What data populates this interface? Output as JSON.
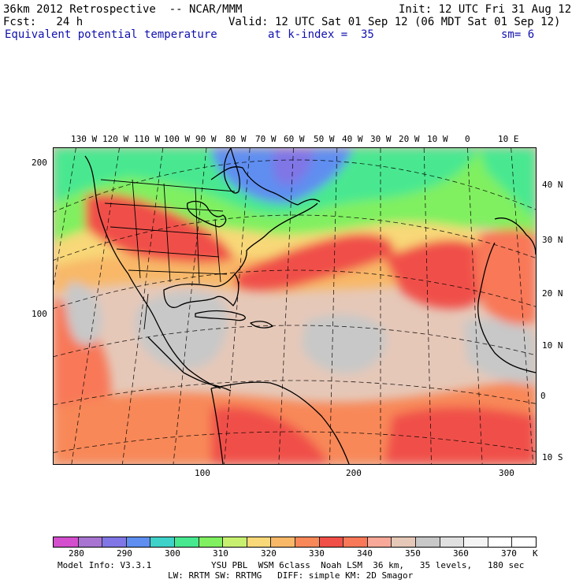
{
  "header": {
    "line1_left": "36km 2012 Retrospective  -- NCAR/MMM",
    "line1_right": "Init: 12 UTC Fri 31 Aug 12",
    "line2_left": "Fcst:   24 h",
    "line2_right": "Valid: 12 UTC Sat 01 Sep 12 (06 MDT Sat 01 Sep 12)",
    "field": "Equivalent potential temperature",
    "level": "at k-index =  35",
    "smooth": "sm= 6"
  },
  "map": {
    "top_lon_labels": [
      "130 W",
      "120 W",
      "110 W",
      "100 W",
      "90 W",
      "80 W",
      "70 W",
      "60 W",
      "50 W",
      "40 W",
      "30 W",
      "20 W",
      "10 W",
      "0",
      "10 E"
    ],
    "right_lat_labels": [
      "40 N",
      "30 N",
      "20 N",
      "10 N",
      "0",
      "10 S"
    ],
    "left_ticks": [
      "200",
      "100"
    ],
    "bottom_ticks": [
      "100",
      "200",
      "300"
    ]
  },
  "colorbar": {
    "colors": [
      "#d44fce",
      "#a874d2",
      "#8076e6",
      "#5e8ef0",
      "#3fd2c8",
      "#48e890",
      "#80f060",
      "#c8f070",
      "#f8d878",
      "#f8b868",
      "#f88858",
      "#f05048",
      "#f87858",
      "#f8a898",
      "#e6c8b8",
      "#c8c8c8",
      "#e0e0e0",
      "#f4f4f4",
      "#ffffff",
      "#ffffff"
    ],
    "labels": [
      "280",
      "290",
      "300",
      "310",
      "320",
      "330",
      "340",
      "350",
      "360",
      "370"
    ],
    "unit": "K"
  },
  "footer": {
    "line1_left": "Model Info: V3.3.1",
    "line1_right": "YSU PBL  WSM 6class  Noah LSM  36 km,   35 levels,   180 sec",
    "line2": "LW: RRTM SW: RRTMG   DIFF: simple KM: 2D Smagor"
  }
}
